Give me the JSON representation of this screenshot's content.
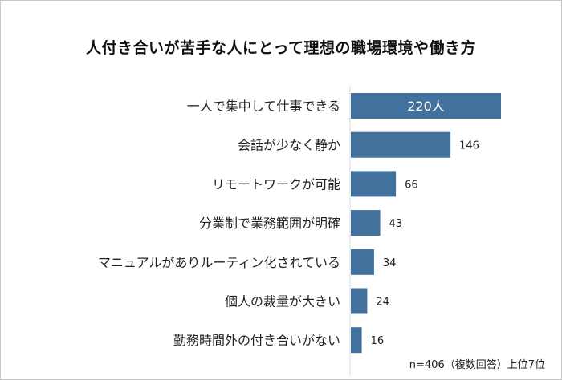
{
  "chart_data": {
    "type": "bar",
    "orientation": "horizontal",
    "title": "人付き合いが苦手な人にとって理想の職場環境や働き方",
    "categories": [
      "一人で集中して仕事できる",
      "会話が少なく静か",
      "リモートワークが可能",
      "分業制で業務範囲が明確",
      "マニュアルがありルーティン化されている",
      "個人の裁量が大きい",
      "勤務時間外の付き合いがない"
    ],
    "values": [
      220,
      146,
      66,
      43,
      34,
      24,
      16
    ],
    "data_labels": [
      "220人",
      "146",
      "66",
      "43",
      "34",
      "24",
      "16"
    ],
    "bar_color": "#41719c",
    "xlim": [
      0,
      220
    ],
    "grid": false,
    "note": "n=406（複数回答）上位7位"
  }
}
